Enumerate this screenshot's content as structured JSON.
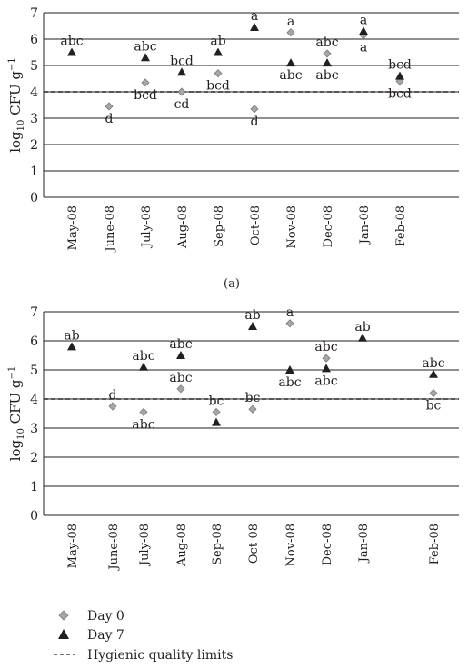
{
  "legend": {
    "day0": "Day 0",
    "day7": "Day 7",
    "limit": "Hygienic quality limits"
  },
  "chart_data": [
    {
      "type": "scatter",
      "panel_label": "(a)",
      "ylabel": "log₁₀ CFU g⁻¹",
      "ylim": [
        0,
        7
      ],
      "yticks": [
        0,
        1,
        2,
        3,
        4,
        5,
        6,
        7
      ],
      "grid": "horizontal",
      "categories": [
        "May-08",
        "June-08",
        "July-08",
        "Aug-08",
        "Sep-08",
        "Oct-08",
        "Nov-08",
        "Dec-08",
        "Jan-08",
        "Feb-08"
      ],
      "reference_line": 4.0,
      "series": [
        {
          "name": "Day 0",
          "marker": "diamond",
          "color": "#a6a6a6",
          "values": [
            null,
            3.45,
            4.35,
            4.0,
            4.7,
            3.35,
            6.25,
            5.45,
            6.15,
            4.4
          ],
          "labels": [
            "",
            "d",
            "bcd",
            "cd",
            "bcd",
            "d",
            "a",
            "abc",
            "a",
            "bcd"
          ]
        },
        {
          "name": "Day 7",
          "marker": "triangle",
          "color": "#231f20",
          "values": [
            5.5,
            null,
            5.3,
            4.75,
            5.5,
            6.45,
            5.1,
            5.1,
            6.3,
            4.6
          ],
          "labels": [
            "abc",
            "",
            "abc",
            "bcd",
            "ab",
            "a",
            "abc",
            "abc",
            "a",
            "bcd"
          ]
        }
      ]
    },
    {
      "type": "scatter",
      "panel_label": "",
      "ylabel": "log₁₀ CFU g⁻¹",
      "ylim": [
        0,
        7
      ],
      "yticks": [
        0,
        1,
        2,
        3,
        4,
        5,
        6,
        7
      ],
      "grid": "horizontal",
      "categories": [
        "May-08",
        "June-08",
        "July-08",
        "Aug-08",
        "Sep-08",
        "Oct-08",
        "Nov-08",
        "Dec-08",
        "Jan-08",
        "Feb-08"
      ],
      "reference_line": 4.0,
      "series": [
        {
          "name": "Day 0",
          "marker": "diamond",
          "color": "#a6a6a6",
          "values": [
            null,
            3.75,
            3.55,
            4.35,
            3.55,
            3.65,
            6.6,
            5.4,
            null,
            4.2
          ],
          "labels": [
            "",
            "d",
            "abc",
            "abc",
            "bc",
            "bc",
            "a",
            "abc",
            "",
            "bc"
          ]
        },
        {
          "name": "Day 7",
          "marker": "triangle",
          "color": "#231f20",
          "values": [
            5.8,
            null,
            5.1,
            5.5,
            3.2,
            6.5,
            5.0,
            5.05,
            6.1,
            4.85
          ],
          "labels": [
            "ab",
            "",
            "abc",
            "abc",
            "",
            "ab",
            "abc",
            "abc",
            "ab",
            "abc"
          ]
        }
      ]
    }
  ]
}
